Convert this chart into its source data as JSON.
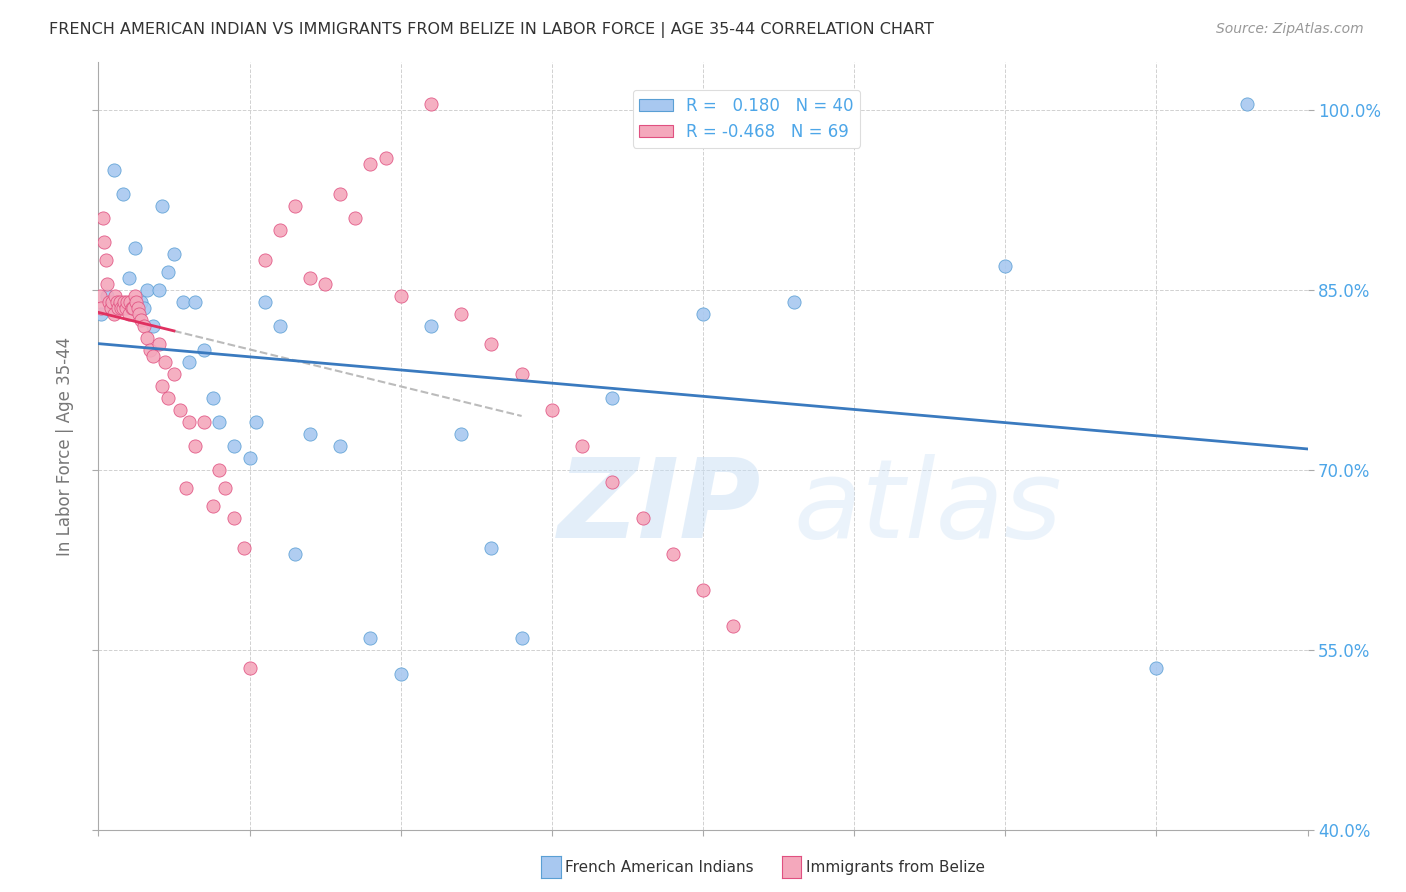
{
  "title": "FRENCH AMERICAN INDIAN VS IMMIGRANTS FROM BELIZE IN LABOR FORCE | AGE 35-44 CORRELATION CHART",
  "source": "Source: ZipAtlas.com",
  "ylabel": "In Labor Force | Age 35-44",
  "x_range": [
    0.0,
    40.0
  ],
  "y_range": [
    40.0,
    104.0
  ],
  "blue_R": 0.18,
  "blue_N": 40,
  "pink_R": -0.468,
  "pink_N": 69,
  "blue_color": "#a8c8f0",
  "pink_color": "#f4a8bc",
  "blue_edge_color": "#5a9fd4",
  "pink_edge_color": "#e05080",
  "blue_line_color": "#3a7abf",
  "pink_line_color": "#e03060",
  "blue_scatter_x": [
    0.1,
    0.3,
    0.5,
    0.8,
    1.0,
    1.2,
    1.4,
    1.5,
    1.6,
    1.8,
    2.0,
    2.1,
    2.3,
    2.5,
    2.8,
    3.0,
    3.2,
    3.5,
    3.8,
    4.0,
    4.5,
    5.0,
    5.2,
    5.5,
    6.0,
    6.5,
    7.0,
    8.0,
    9.0,
    10.0,
    11.0,
    12.0,
    13.0,
    14.0,
    17.0,
    20.0,
    23.0,
    30.0,
    35.0,
    38.0
  ],
  "blue_scatter_y": [
    83.0,
    84.5,
    95.0,
    93.0,
    86.0,
    88.5,
    84.0,
    83.5,
    85.0,
    82.0,
    85.0,
    92.0,
    86.5,
    88.0,
    84.0,
    79.0,
    84.0,
    80.0,
    76.0,
    74.0,
    72.0,
    71.0,
    74.0,
    84.0,
    82.0,
    63.0,
    73.0,
    72.0,
    56.0,
    53.0,
    82.0,
    73.0,
    63.5,
    56.0,
    76.0,
    83.0,
    84.0,
    87.0,
    53.5,
    100.5
  ],
  "pink_scatter_x": [
    0.05,
    0.1,
    0.15,
    0.2,
    0.25,
    0.3,
    0.35,
    0.4,
    0.45,
    0.5,
    0.55,
    0.6,
    0.65,
    0.7,
    0.75,
    0.8,
    0.85,
    0.9,
    0.95,
    1.0,
    1.05,
    1.1,
    1.15,
    1.2,
    1.25,
    1.3,
    1.35,
    1.4,
    1.5,
    1.6,
    1.7,
    1.8,
    2.0,
    2.1,
    2.2,
    2.3,
    2.5,
    2.7,
    2.9,
    3.0,
    3.2,
    3.5,
    3.8,
    4.0,
    4.2,
    4.5,
    4.8,
    5.0,
    5.5,
    6.0,
    6.5,
    7.0,
    7.5,
    8.0,
    8.5,
    9.0,
    9.5,
    10.0,
    11.0,
    12.0,
    13.0,
    14.0,
    15.0,
    16.0,
    17.0,
    18.0,
    19.0,
    20.0,
    21.0
  ],
  "pink_scatter_y": [
    84.5,
    83.5,
    91.0,
    89.0,
    87.5,
    85.5,
    84.0,
    83.5,
    84.0,
    83.0,
    84.5,
    84.0,
    83.5,
    84.0,
    83.5,
    83.5,
    84.0,
    83.5,
    84.0,
    83.0,
    84.0,
    83.5,
    83.5,
    84.5,
    84.0,
    83.5,
    83.0,
    82.5,
    82.0,
    81.0,
    80.0,
    79.5,
    80.5,
    77.0,
    79.0,
    76.0,
    78.0,
    75.0,
    68.5,
    74.0,
    72.0,
    74.0,
    67.0,
    70.0,
    68.5,
    66.0,
    63.5,
    53.5,
    87.5,
    90.0,
    92.0,
    86.0,
    85.5,
    93.0,
    91.0,
    95.5,
    96.0,
    84.5,
    100.5,
    83.0,
    80.5,
    78.0,
    75.0,
    72.0,
    69.0,
    66.0,
    63.0,
    60.0,
    57.0
  ],
  "background_color": "#ffffff",
  "grid_color": "#cccccc",
  "axis_label_color": "#4da6e8",
  "title_color": "#333333",
  "ylabel_color": "#777777",
  "y_ticks": [
    40.0,
    55.0,
    70.0,
    85.0,
    100.0
  ]
}
